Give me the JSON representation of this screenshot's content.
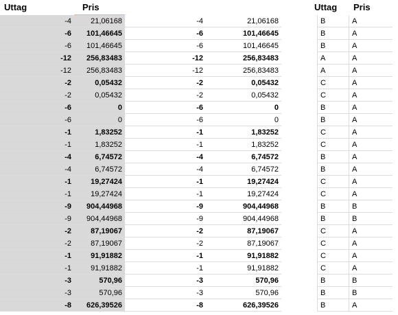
{
  "headers": {
    "left_uttag": "Uttag",
    "left_pris": "Pris",
    "right_uttag": "Uttag",
    "right_pris": "Pris"
  },
  "rows": [
    {
      "u": "-4",
      "p": "21,06168",
      "ru": "-4",
      "rp": "21,06168",
      "c1": "B",
      "c2": "A",
      "bold": false
    },
    {
      "u": "-6",
      "p": "101,46645",
      "ru": "-6",
      "rp": "101,46645",
      "c1": "B",
      "c2": "A",
      "bold": true
    },
    {
      "u": "-6",
      "p": "101,46645",
      "ru": "-6",
      "rp": "101,46645",
      "c1": "B",
      "c2": "A",
      "bold": false
    },
    {
      "u": "-12",
      "p": "256,83483",
      "ru": "-12",
      "rp": "256,83483",
      "c1": "A",
      "c2": "A",
      "bold": true
    },
    {
      "u": "-12",
      "p": "256,83483",
      "ru": "-12",
      "rp": "256,83483",
      "c1": "A",
      "c2": "A",
      "bold": false
    },
    {
      "u": "-2",
      "p": "0,05432",
      "ru": "-2",
      "rp": "0,05432",
      "c1": "C",
      "c2": "A",
      "bold": true
    },
    {
      "u": "-2",
      "p": "0,05432",
      "ru": "-2",
      "rp": "0,05432",
      "c1": "C",
      "c2": "A",
      "bold": false
    },
    {
      "u": "-6",
      "p": "0",
      "ru": "-6",
      "rp": "0",
      "c1": "B",
      "c2": "A",
      "bold": true
    },
    {
      "u": "-6",
      "p": "0",
      "ru": "-6",
      "rp": "0",
      "c1": "B",
      "c2": "A",
      "bold": false
    },
    {
      "u": "-1",
      "p": "1,83252",
      "ru": "-1",
      "rp": "1,83252",
      "c1": "C",
      "c2": "A",
      "bold": true
    },
    {
      "u": "-1",
      "p": "1,83252",
      "ru": "-1",
      "rp": "1,83252",
      "c1": "C",
      "c2": "A",
      "bold": false
    },
    {
      "u": "-4",
      "p": "6,74572",
      "ru": "-4",
      "rp": "6,74572",
      "c1": "B",
      "c2": "A",
      "bold": true
    },
    {
      "u": "-4",
      "p": "6,74572",
      "ru": "-4",
      "rp": "6,74572",
      "c1": "B",
      "c2": "A",
      "bold": false
    },
    {
      "u": "-1",
      "p": "19,27424",
      "ru": "-1",
      "rp": "19,27424",
      "c1": "C",
      "c2": "A",
      "bold": true
    },
    {
      "u": "-1",
      "p": "19,27424",
      "ru": "-1",
      "rp": "19,27424",
      "c1": "C",
      "c2": "A",
      "bold": false
    },
    {
      "u": "-9",
      "p": "904,44968",
      "ru": "-9",
      "rp": "904,44968",
      "c1": "B",
      "c2": "B",
      "bold": true
    },
    {
      "u": "-9",
      "p": "904,44968",
      "ru": "-9",
      "rp": "904,44968",
      "c1": "B",
      "c2": "B",
      "bold": false
    },
    {
      "u": "-2",
      "p": "87,19067",
      "ru": "-2",
      "rp": "87,19067",
      "c1": "C",
      "c2": "A",
      "bold": true
    },
    {
      "u": "-2",
      "p": "87,19067",
      "ru": "-2",
      "rp": "87,19067",
      "c1": "C",
      "c2": "A",
      "bold": false
    },
    {
      "u": "-1",
      "p": "91,91882",
      "ru": "-1",
      "rp": "91,91882",
      "c1": "C",
      "c2": "A",
      "bold": true
    },
    {
      "u": "-1",
      "p": "91,91882",
      "ru": "-1",
      "rp": "91,91882",
      "c1": "C",
      "c2": "A",
      "bold": false
    },
    {
      "u": "-3",
      "p": "570,96",
      "ru": "-3",
      "rp": "570,96",
      "c1": "B",
      "c2": "B",
      "bold": true
    },
    {
      "u": "-3",
      "p": "570,96",
      "ru": "-3",
      "rp": "570,96",
      "c1": "B",
      "c2": "B",
      "bold": false
    },
    {
      "u": "-8",
      "p": "626,39526",
      "ru": "-8",
      "rp": "626,39526",
      "c1": "B",
      "c2": "A",
      "bold": true
    }
  ]
}
